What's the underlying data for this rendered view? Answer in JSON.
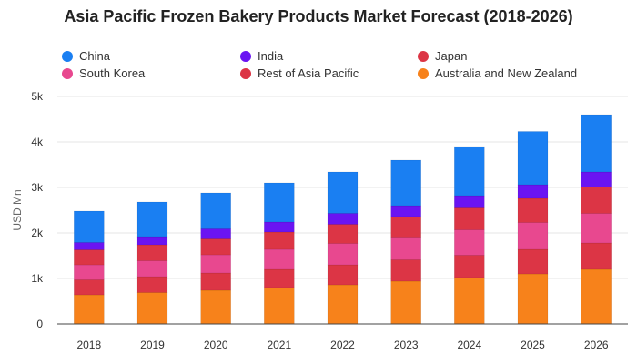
{
  "chart_data": {
    "type": "bar",
    "stacked": true,
    "title": "Asia Pacific Frozen Bakery Products Market Forecast (2018-2026)",
    "xlabel": "",
    "ylabel": "USD Mn",
    "ylim": [
      0,
      5000
    ],
    "yticks": [
      0,
      1000,
      2000,
      3000,
      4000,
      5000
    ],
    "ytick_labels": [
      "0",
      "1k",
      "2k",
      "3k",
      "4k",
      "5k"
    ],
    "grid": true,
    "legend_position": "top",
    "categories": [
      "2018",
      "2019",
      "2020",
      "2021",
      "2022",
      "2023",
      "2024",
      "2025",
      "2026"
    ],
    "series": [
      {
        "name": "Australia and New Zealand",
        "color": "#f7821b",
        "values": [
          640,
          690,
          740,
          800,
          860,
          940,
          1020,
          1100,
          1200
        ]
      },
      {
        "name": "Rest of Asia Pacific",
        "color": "#dc3545",
        "values": [
          330,
          350,
          380,
          400,
          440,
          470,
          490,
          540,
          580
        ]
      },
      {
        "name": "South Korea",
        "color": "#e8488f",
        "values": [
          330,
          350,
          400,
          440,
          470,
          500,
          560,
          590,
          650
        ]
      },
      {
        "name": "Japan",
        "color": "#dc3545",
        "values": [
          330,
          350,
          350,
          380,
          420,
          450,
          480,
          530,
          580
        ]
      },
      {
        "name": "India",
        "color": "#6a14f2",
        "values": [
          160,
          180,
          220,
          220,
          240,
          240,
          270,
          300,
          330
        ]
      },
      {
        "name": "China",
        "color": "#1a7ff2",
        "values": [
          690,
          760,
          790,
          860,
          910,
          1000,
          1080,
          1170,
          1260
        ]
      }
    ]
  },
  "legend": [
    {
      "label": "China",
      "color": "#1a7ff2"
    },
    {
      "label": "India",
      "color": "#6a14f2"
    },
    {
      "label": "Japan",
      "color": "#dc3545"
    },
    {
      "label": "South Korea",
      "color": "#e8488f"
    },
    {
      "label": "Rest of Asia Pacific",
      "color": "#dc3545"
    },
    {
      "label": "Australia and New Zealand",
      "color": "#f7821b"
    }
  ]
}
